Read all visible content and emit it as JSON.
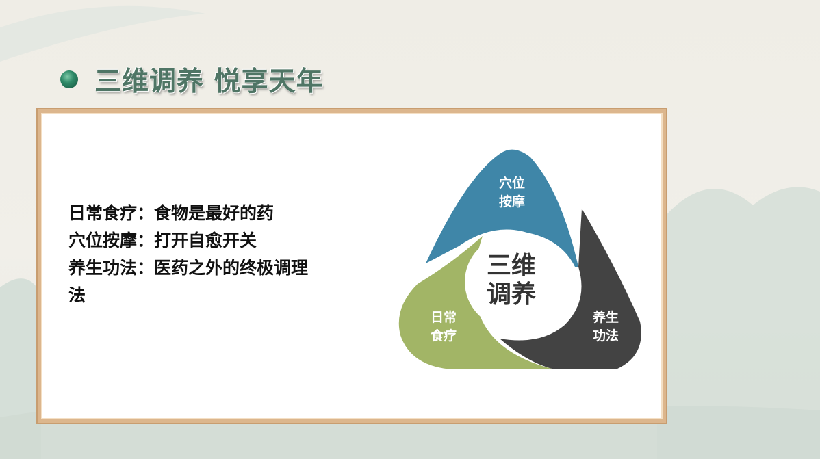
{
  "title": "三维调养 悦享天年",
  "lines": [
    "日常食疗：食物是最好的药",
    "穴位按摩：打开自愈开关",
    "养生功法：医药之外的终极调理",
    "法"
  ],
  "diagram": {
    "center": [
      "三维",
      "调养"
    ],
    "segments": [
      {
        "lines": [
          "穴位",
          "按摩"
        ],
        "color": "#3f86a8"
      },
      {
        "lines": [
          "养生",
          "功法"
        ],
        "color": "#434343"
      },
      {
        "lines": [
          "日常",
          "食疗"
        ],
        "color": "#a2b566"
      }
    ]
  }
}
